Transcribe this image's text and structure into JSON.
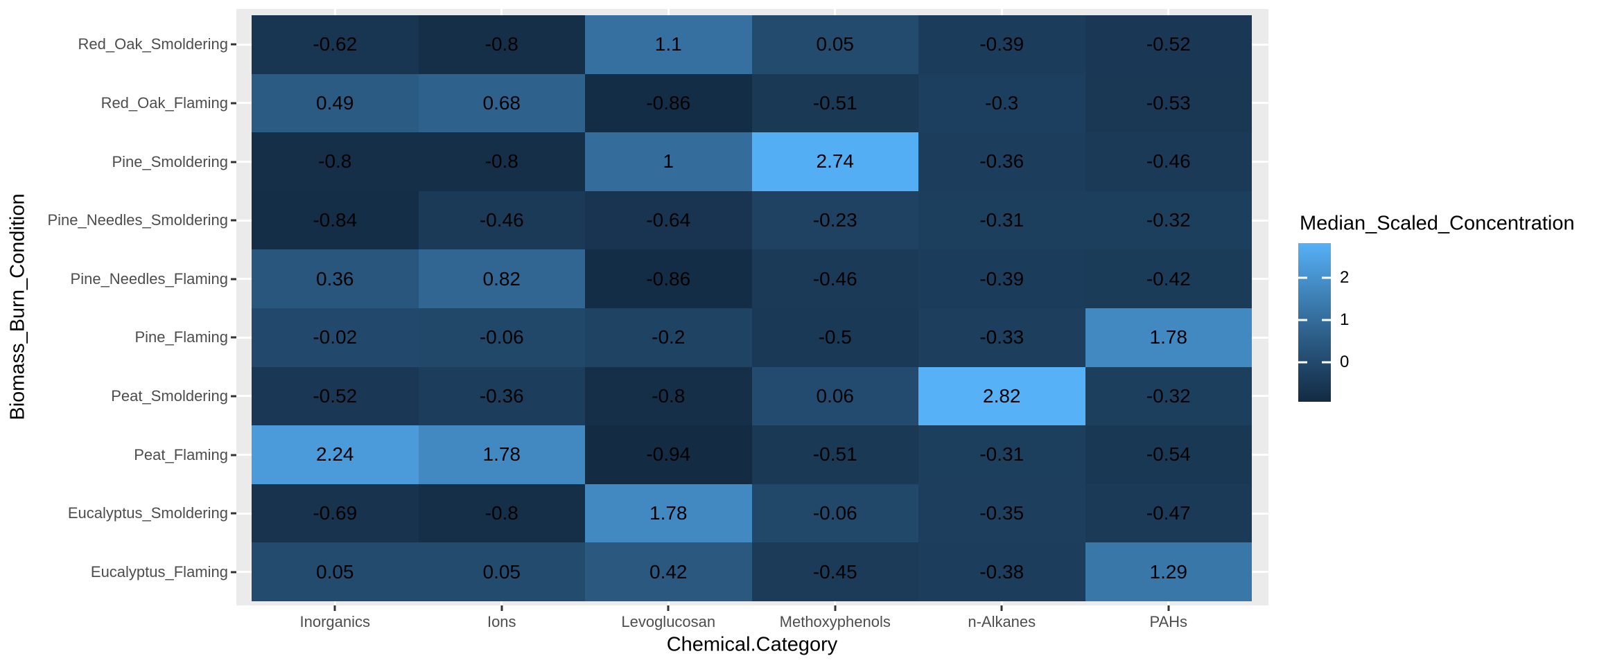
{
  "chart_data": {
    "type": "heatmap",
    "xlabel": "Chemical.Category",
    "ylabel": "Biomass_Burn_Condition",
    "categories_x": [
      "Inorganics",
      "Ions",
      "Levoglucosan",
      "Methoxyphenols",
      "n-Alkanes",
      "PAHs"
    ],
    "categories_y": [
      "Red_Oak_Smoldering",
      "Red_Oak_Flaming",
      "Pine_Smoldering",
      "Pine_Needles_Smoldering",
      "Pine_Needles_Flaming",
      "Pine_Flaming",
      "Peat_Smoldering",
      "Peat_Flaming",
      "Eucalyptus_Smoldering",
      "Eucalyptus_Flaming"
    ],
    "values": [
      [
        -0.62,
        -0.8,
        1.1,
        0.05,
        -0.39,
        -0.52
      ],
      [
        0.49,
        0.68,
        -0.86,
        -0.51,
        -0.3,
        -0.53
      ],
      [
        -0.8,
        -0.8,
        1,
        2.74,
        -0.36,
        -0.46
      ],
      [
        -0.84,
        -0.46,
        -0.64,
        -0.23,
        -0.31,
        -0.32
      ],
      [
        0.36,
        0.82,
        -0.86,
        -0.46,
        -0.39,
        -0.42
      ],
      [
        -0.02,
        -0.06,
        -0.2,
        -0.5,
        -0.33,
        1.78
      ],
      [
        -0.52,
        -0.36,
        -0.8,
        0.06,
        2.82,
        -0.32
      ],
      [
        2.24,
        1.78,
        -0.94,
        -0.51,
        -0.31,
        -0.54
      ],
      [
        -0.69,
        -0.8,
        1.78,
        -0.06,
        -0.35,
        -0.47
      ],
      [
        0.05,
        0.05,
        0.42,
        -0.45,
        -0.38,
        1.29
      ]
    ],
    "legend": {
      "title": "Median_Scaled_Concentration",
      "tick_values": [
        2,
        1,
        0
      ],
      "domain": [
        -0.94,
        2.82
      ]
    },
    "colors": {
      "gradient_low": "#132B43",
      "gradient_high": "#56B1F7",
      "panel_background": "#EBEBEB",
      "gridline": "#FFFFFF",
      "axis_text": "#4D4D4D",
      "tick_mark": "#333333",
      "cell_text": "#000000"
    },
    "grid": true,
    "legend_position": "right"
  }
}
